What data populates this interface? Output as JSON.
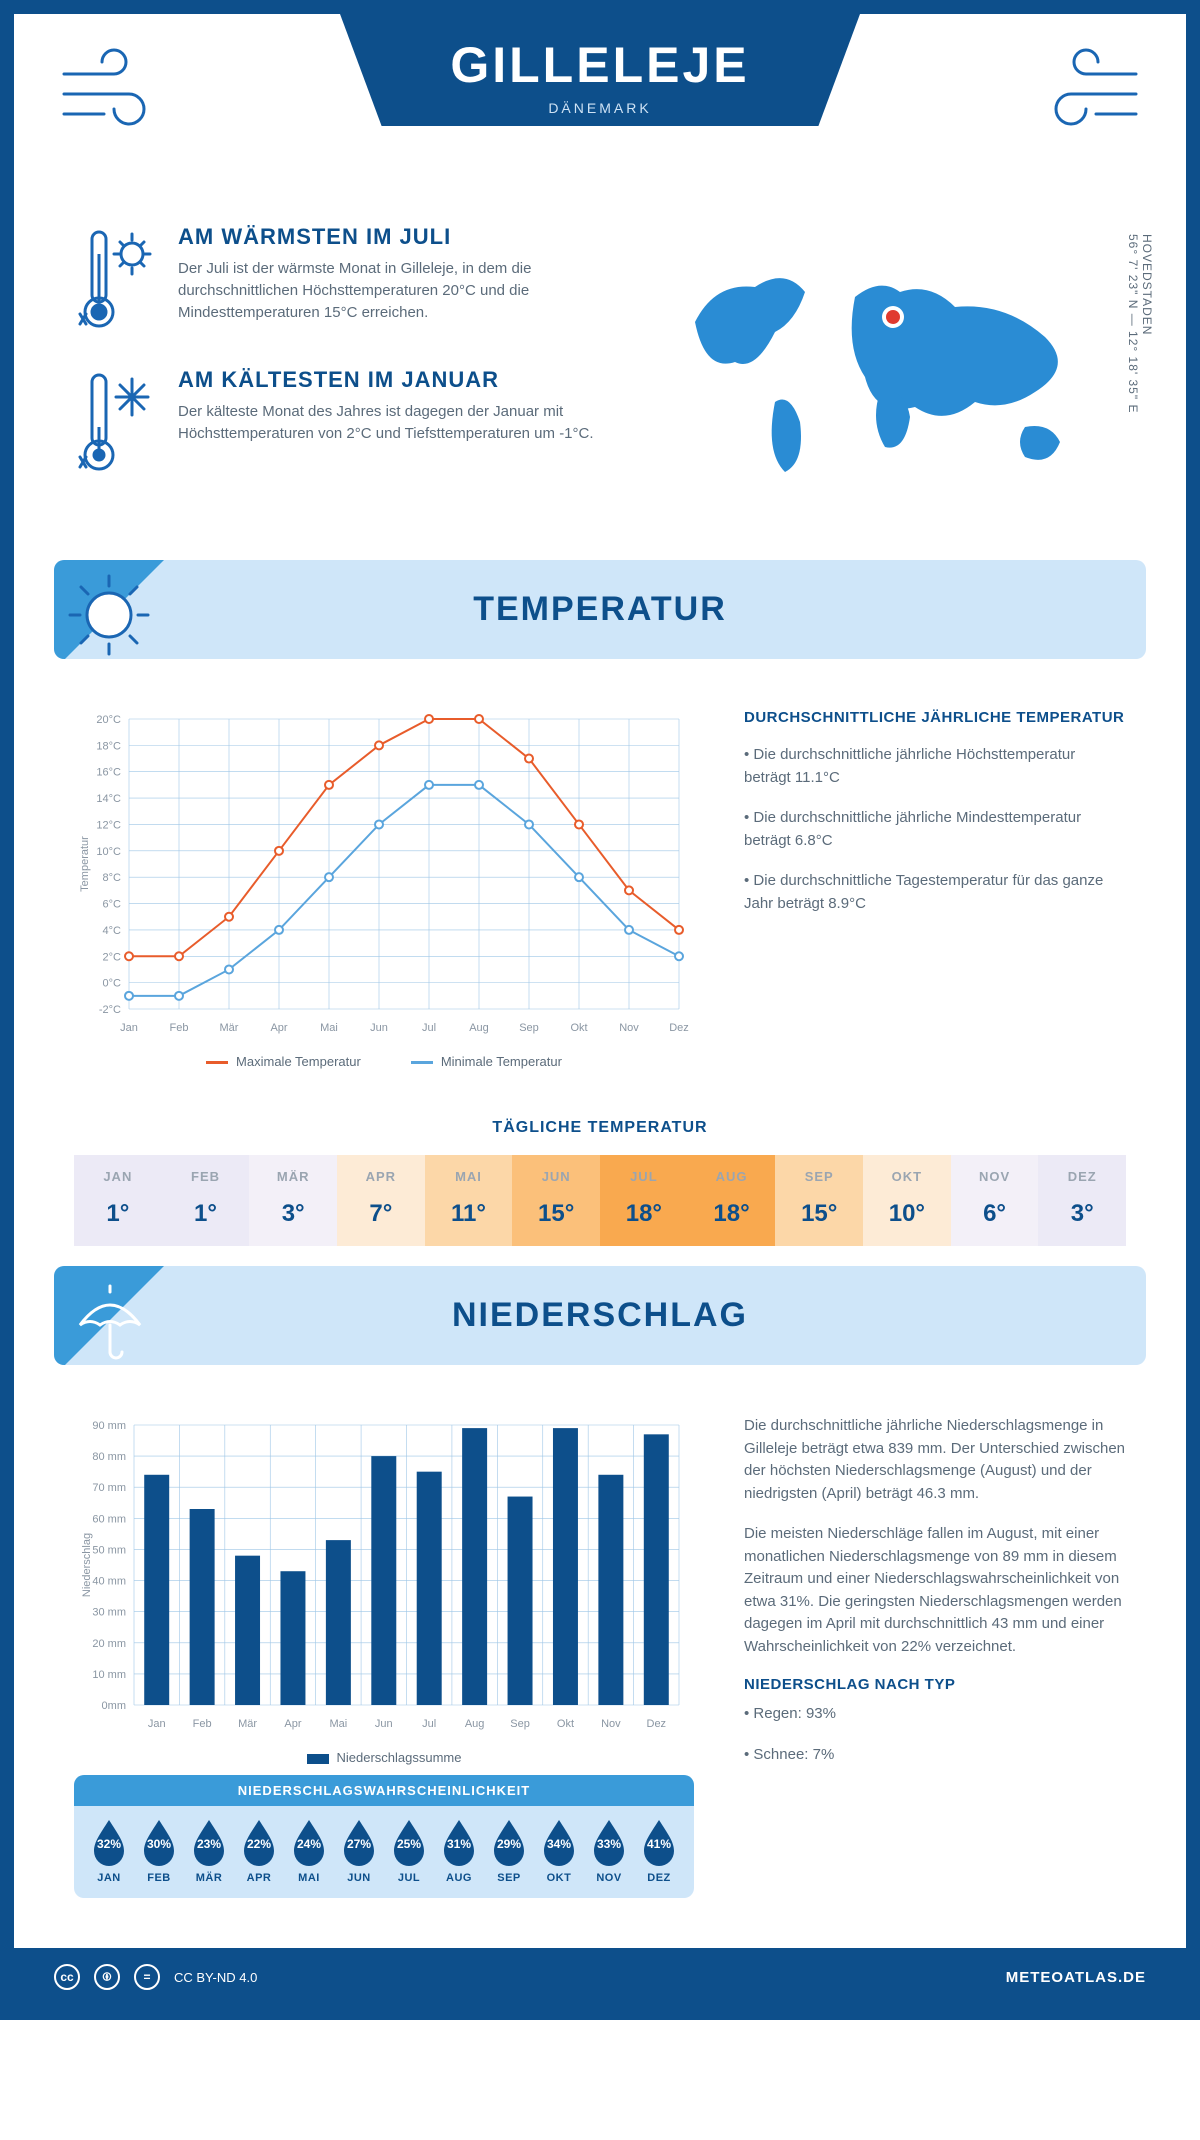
{
  "header": {
    "title": "GILLELEJE",
    "subtitle": "DÄNEMARK",
    "coords_line1": "56° 7' 23\" N — 12° 18' 35\" E",
    "region": "HOVEDSTADEN"
  },
  "facts": {
    "warm": {
      "title": "AM WÄRMSTEN IM JULI",
      "text": "Der Juli ist der wärmste Monat in Gilleleje, in dem die durchschnittlichen Höchsttemperaturen 20°C und die Mindesttemperaturen 15°C erreichen."
    },
    "cold": {
      "title": "AM KÄLTESTEN IM JANUAR",
      "text": "Der kälteste Monat des Jahres ist dagegen der Januar mit Höchsttemperaturen von 2°C und Tiefsttemperaturen um -1°C."
    }
  },
  "months": [
    "Jan",
    "Feb",
    "Mär",
    "Apr",
    "Mai",
    "Jun",
    "Jul",
    "Aug",
    "Sep",
    "Okt",
    "Nov",
    "Dez"
  ],
  "months_upper": [
    "JAN",
    "FEB",
    "MÄR",
    "APR",
    "MAI",
    "JUN",
    "JUL",
    "AUG",
    "SEP",
    "OKT",
    "NOV",
    "DEZ"
  ],
  "temperature": {
    "section_title": "TEMPERATUR",
    "chart": {
      "type": "line",
      "y_label": "Temperatur",
      "y_ticks": [
        -2,
        0,
        2,
        4,
        6,
        8,
        10,
        12,
        14,
        16,
        18,
        20
      ],
      "y_tick_labels": [
        "-2°C",
        "0°C",
        "2°C",
        "4°C",
        "6°C",
        "8°C",
        "10°C",
        "12°C",
        "14°C",
        "16°C",
        "18°C",
        "20°C"
      ],
      "ylim": [
        -2,
        20
      ],
      "series": {
        "max": {
          "label": "Maximale Temperatur",
          "color": "#e85c2b",
          "values": [
            2,
            2,
            5,
            10,
            15,
            18,
            20,
            20,
            17,
            12,
            7,
            4
          ]
        },
        "min": {
          "label": "Minimale Temperatur",
          "color": "#5aa5dd",
          "values": [
            -1,
            -1,
            1,
            4,
            8,
            12,
            15,
            15,
            12,
            8,
            4,
            2
          ]
        }
      },
      "grid_color": "#9ec6e6",
      "background": "#ffffff",
      "line_width": 2,
      "marker": "circle",
      "marker_size": 4
    },
    "info": {
      "heading": "DURCHSCHNITTLICHE JÄHRLICHE TEMPERATUR",
      "b1": "• Die durchschnittliche jährliche Höchsttemperatur beträgt 11.1°C",
      "b2": "• Die durchschnittliche jährliche Mindesttemperatur beträgt 6.8°C",
      "b3": "• Die durchschnittliche Tagestemperatur für das ganze Jahr beträgt 8.9°C"
    },
    "daily": {
      "title": "TÄGLICHE TEMPERATUR",
      "values": [
        "1°",
        "1°",
        "3°",
        "7°",
        "11°",
        "15°",
        "18°",
        "18°",
        "15°",
        "10°",
        "6°",
        "3°"
      ],
      "colors": [
        "#eceaf6",
        "#eceaf6",
        "#f3f0f8",
        "#fdebd6",
        "#fcd7a8",
        "#fbc07a",
        "#f9a94f",
        "#f9a94f",
        "#fcd7a8",
        "#fdebd6",
        "#f3f0f8",
        "#eceaf6"
      ]
    }
  },
  "precipitation": {
    "section_title": "NIEDERSCHLAG",
    "chart": {
      "type": "bar",
      "y_label": "Niederschlag",
      "y_ticks": [
        0,
        10,
        20,
        30,
        40,
        50,
        60,
        70,
        80,
        90
      ],
      "y_tick_labels": [
        "0mm",
        "10 mm",
        "20 mm",
        "30 mm",
        "40 mm",
        "50 mm",
        "60 mm",
        "70 mm",
        "80 mm",
        "90 mm"
      ],
      "ylim": [
        0,
        90
      ],
      "values": [
        74,
        63,
        48,
        43,
        53,
        80,
        75,
        89,
        67,
        89,
        74,
        87
      ],
      "bar_color": "#0d4f8b",
      "grid_color": "#9ec6e6",
      "bar_width": 0.55,
      "legend": "Niederschlagssumme"
    },
    "info": {
      "p1": "Die durchschnittliche jährliche Niederschlagsmenge in Gilleleje beträgt etwa 839 mm. Der Unterschied zwischen der höchsten Niederschlagsmenge (August) und der niedrigsten (April) beträgt 46.3 mm.",
      "p2": "Die meisten Niederschläge fallen im August, mit einer monatlichen Niederschlagsmenge von 89 mm in diesem Zeitraum und einer Niederschlagswahrscheinlichkeit von etwa 31%. Die geringsten Niederschlagsmengen werden dagegen im April mit durchschnittlich 43 mm und einer Wahrscheinlichkeit von 22% verzeichnet.",
      "type_heading": "NIEDERSCHLAG NACH TYP",
      "type_rain": "• Regen: 93%",
      "type_snow": "• Schnee: 7%"
    },
    "probability": {
      "title": "NIEDERSCHLAGSWAHRSCHEINLICHKEIT",
      "values": [
        "32%",
        "30%",
        "23%",
        "22%",
        "24%",
        "27%",
        "25%",
        "31%",
        "29%",
        "34%",
        "33%",
        "41%"
      ],
      "drop_color": "#0d4f8b",
      "background": "#cfe6f9",
      "header_bg": "#3a9bd9"
    }
  },
  "footer": {
    "license": "CC BY-ND 4.0",
    "site": "METEOATLAS.DE"
  },
  "colors": {
    "brand_dark": "#0d4f8b",
    "brand_light": "#cfe6f9",
    "accent": "#3a9bd9"
  }
}
